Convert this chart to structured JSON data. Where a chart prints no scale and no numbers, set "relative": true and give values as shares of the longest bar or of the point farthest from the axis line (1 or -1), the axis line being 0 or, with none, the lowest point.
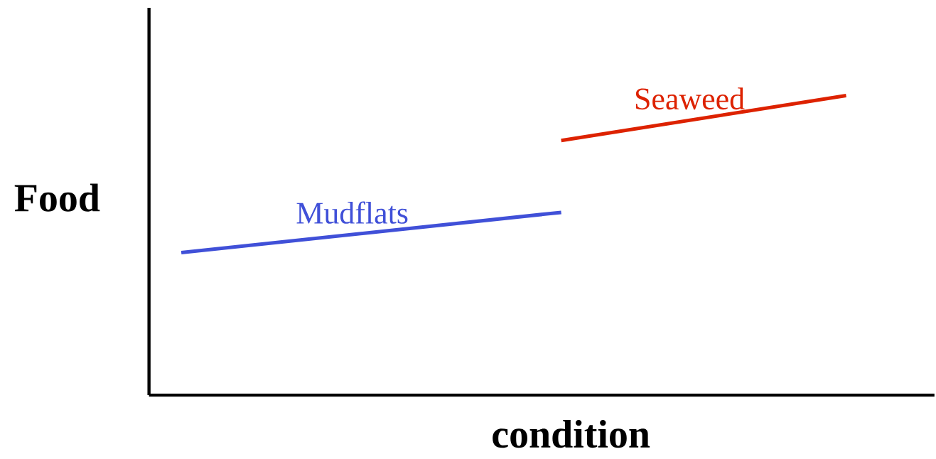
{
  "chart_data": {
    "type": "line",
    "relative": true,
    "xlabel": "condition",
    "ylabel": "Food",
    "categories": [
      null,
      null,
      null,
      null,
      null,
      null,
      null,
      null
    ],
    "series": [
      {
        "name": "Mudflats",
        "color": "#4050d8",
        "values": [
          0.476,
          null,
          null,
          null,
          0.61,
          null,
          null,
          null
        ]
      },
      {
        "name": "Seaweed",
        "color": "#dd2200",
        "values": [
          null,
          null,
          null,
          null,
          0.85,
          null,
          null,
          1
        ]
      }
    ]
  }
}
